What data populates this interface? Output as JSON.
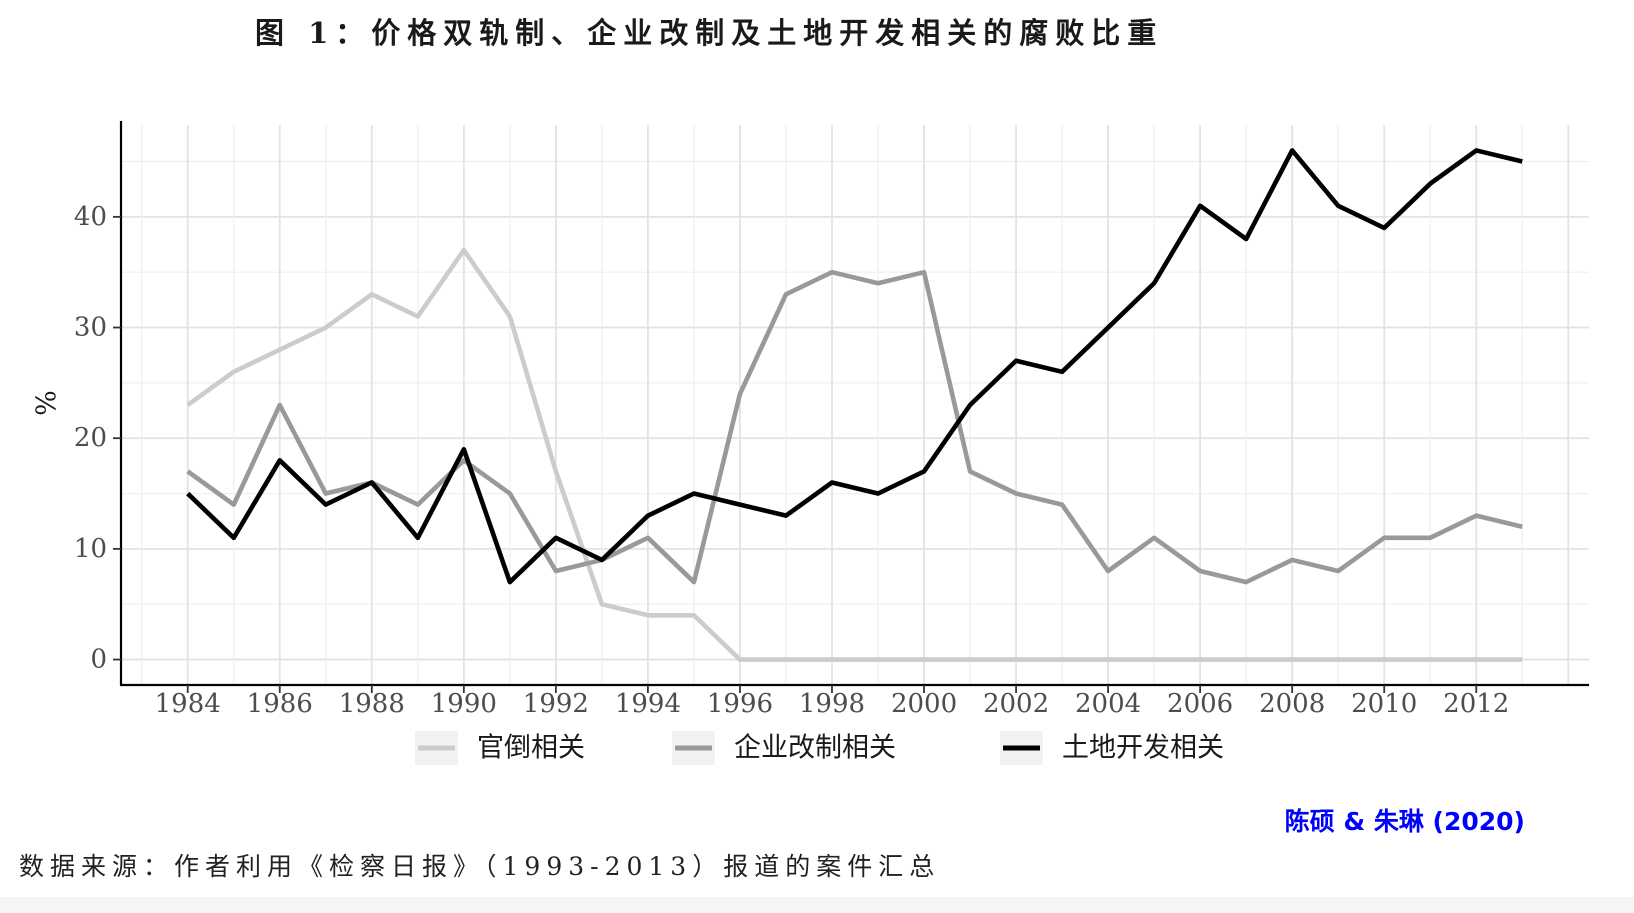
{
  "chart_data": {
    "type": "line",
    "title": "图 1：价格双轨制、企业改制及土地开发相关的腐败比重",
    "ylabel": "%",
    "x": [
      1984,
      1985,
      1986,
      1987,
      1988,
      1989,
      1990,
      1991,
      1992,
      1993,
      1994,
      1995,
      1996,
      1997,
      1998,
      1999,
      2000,
      2001,
      2002,
      2003,
      2004,
      2005,
      2006,
      2007,
      2008,
      2009,
      2010,
      2011,
      2012,
      2013
    ],
    "x_ticks": [
      "1984",
      "1986",
      "1988",
      "1990",
      "1992",
      "1994",
      "1996",
      "1998",
      "2000",
      "2002",
      "2004",
      "2006",
      "2008",
      "2010",
      "2012"
    ],
    "y_ticks": [
      "0",
      "10",
      "20",
      "30",
      "40"
    ],
    "xlim": [
      1982.55,
      2014.45
    ],
    "ylim": [
      -2.3,
      48.3
    ],
    "grid": true,
    "legend_position": "bottom",
    "series": [
      {
        "name": "官倒相关",
        "color": "#cccccc",
        "values": [
          23,
          26,
          28,
          30,
          33,
          31,
          37,
          31,
          17,
          5,
          4,
          4,
          0,
          0,
          0,
          0,
          0,
          0,
          0,
          0,
          0,
          0,
          0,
          0,
          0,
          0,
          0,
          0,
          0,
          0
        ]
      },
      {
        "name": "企业改制相关",
        "color": "#999999",
        "values": [
          17,
          14,
          23,
          15,
          16,
          14,
          18,
          15,
          8,
          9,
          11,
          7,
          24,
          33,
          35,
          34,
          35,
          17,
          15,
          14,
          8,
          11,
          8,
          7,
          9,
          8,
          11,
          11,
          13,
          12
        ]
      },
      {
        "name": "土地开发相关",
        "color": "#000000",
        "values": [
          15,
          11,
          18,
          14,
          16,
          11,
          19,
          7,
          11,
          9,
          13,
          15,
          14,
          13,
          16,
          15,
          17,
          23,
          27,
          26,
          30,
          34,
          41,
          38,
          46,
          41,
          39,
          43,
          46,
          45
        ]
      }
    ]
  },
  "attribution": {
    "text": "陈硕 & 朱琳 (2020)",
    "color": "#0000ff"
  },
  "source_note": "数据来源：作者利用《检察日报》（1993-2013）报道的案件汇总"
}
